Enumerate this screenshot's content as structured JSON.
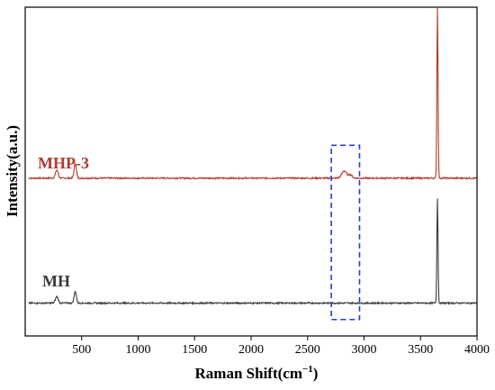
{
  "chart_data": {
    "type": "line",
    "title": "",
    "xlabel": "Raman Shift(cm",
    "xlabel_sup": "−1",
    "xlabel_close": ")",
    "ylabel": "Intensity(a.u.)",
    "xlim": [
      0,
      4000
    ],
    "ylim": [
      0,
      100
    ],
    "x_ticks": [
      500,
      1000,
      1500,
      2000,
      2500,
      3000,
      3500,
      4000
    ],
    "x_tick_labels": [
      "500",
      "1000",
      "1500",
      "2000",
      "2500",
      "3000",
      "3500",
      "4000"
    ],
    "y_ticks_shown": false,
    "grid": false,
    "highlight_box": {
      "x_range": [
        2710,
        2960
      ],
      "y_range": [
        5,
        58
      ],
      "style": "dashed",
      "color": "#2a3bd6"
    },
    "series": [
      {
        "name": "MHP-3",
        "color": "#b03a2e",
        "baseline": 48,
        "peaks": [
          {
            "x": 280,
            "height": 2.5,
            "width": 12
          },
          {
            "x": 443,
            "height": 4.5,
            "width": 10
          },
          {
            "x": 2825,
            "height": 2.2,
            "width": 22
          },
          {
            "x": 2880,
            "height": 1.0,
            "width": 15
          },
          {
            "x": 3650,
            "height": 52,
            "width": 5
          }
        ]
      },
      {
        "name": "MH",
        "color": "#3a3a3a",
        "baseline": 10,
        "peaks": [
          {
            "x": 280,
            "height": 2.0,
            "width": 12
          },
          {
            "x": 443,
            "height": 3.5,
            "width": 10
          },
          {
            "x": 3650,
            "height": 32,
            "width": 5
          }
        ]
      }
    ]
  }
}
